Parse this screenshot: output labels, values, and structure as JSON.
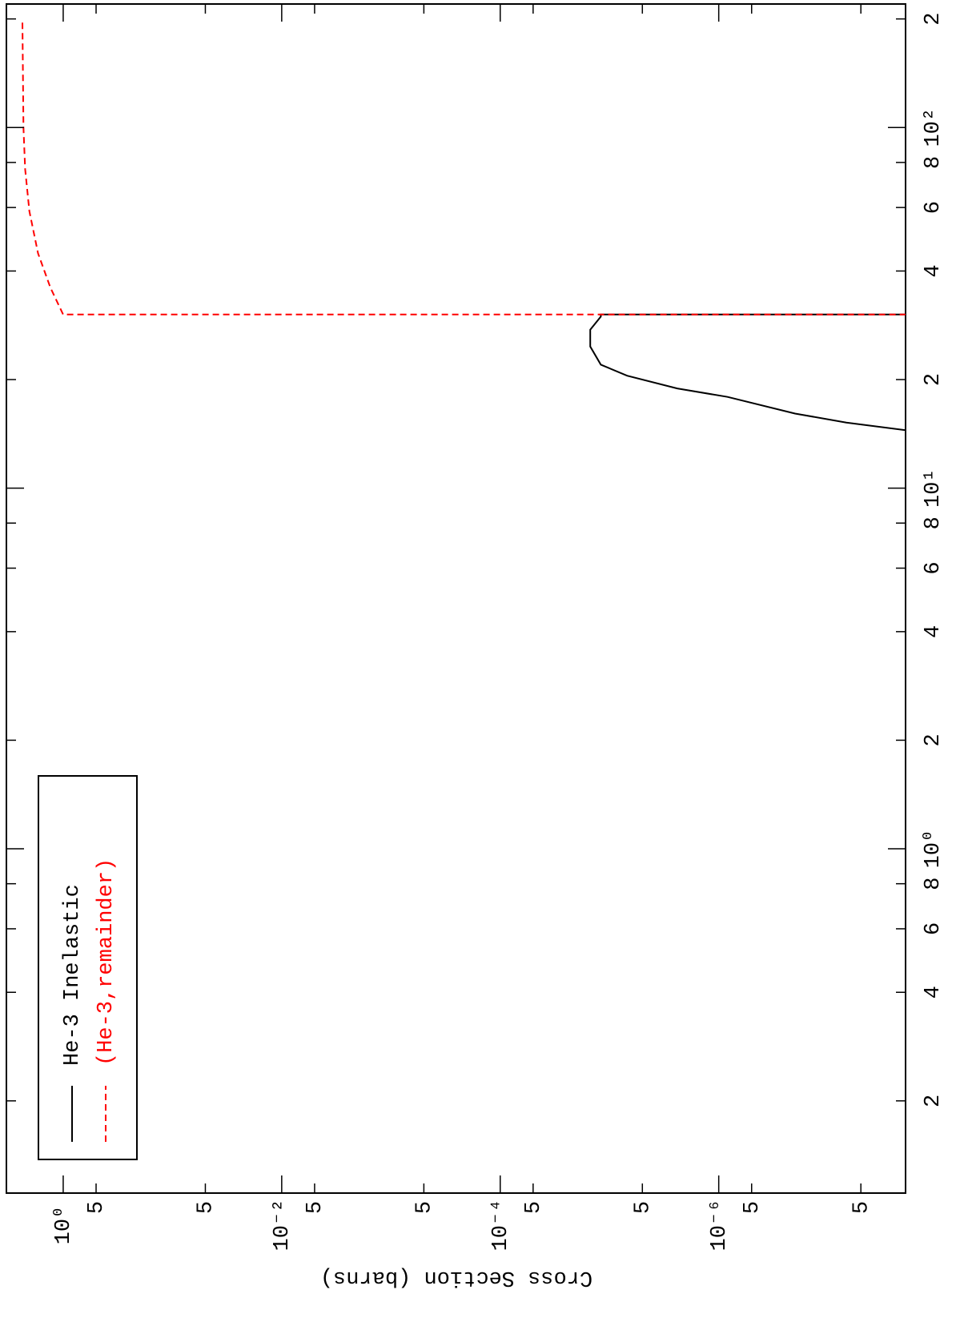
{
  "chart_data": {
    "type": "line",
    "ylabel": "Cross Section (barns)",
    "xscale": "log",
    "yscale": "log",
    "xlim": [
      0.111,
      220
    ],
    "ylim": [
      1.95e-08,
      3.31
    ],
    "xticks": [
      {
        "value": 0.2,
        "label": "2"
      },
      {
        "value": 0.4,
        "label": "4"
      },
      {
        "value": 0.6,
        "label": "6"
      },
      {
        "value": 0.8,
        "label": "8"
      },
      {
        "value": 1,
        "label": "10⁰"
      },
      {
        "value": 2,
        "label": "2"
      },
      {
        "value": 4,
        "label": "4"
      },
      {
        "value": 6,
        "label": "6"
      },
      {
        "value": 8,
        "label": "8"
      },
      {
        "value": 10,
        "label": "10¹"
      },
      {
        "value": 20,
        "label": "2"
      },
      {
        "value": 40,
        "label": "4"
      },
      {
        "value": 60,
        "label": "6"
      },
      {
        "value": 80,
        "label": "8"
      },
      {
        "value": 100,
        "label": "10²"
      },
      {
        "value": 200,
        "label": "2"
      }
    ],
    "yticks": [
      {
        "value": 1,
        "label": "10⁰"
      },
      {
        "value": 0.5,
        "label": "5"
      },
      {
        "value": 0.05,
        "label": "5"
      },
      {
        "value": 0.01,
        "label": "10⁻²"
      },
      {
        "value": 0.005,
        "label": "5"
      },
      {
        "value": 0.0005,
        "label": "5"
      },
      {
        "value": 0.0001,
        "label": "10⁻⁴"
      },
      {
        "value": 5e-05,
        "label": "5"
      },
      {
        "value": 5e-06,
        "label": "5"
      },
      {
        "value": 1e-06,
        "label": "10⁻⁶"
      },
      {
        "value": 5e-07,
        "label": "5"
      },
      {
        "value": 5e-08,
        "label": "5"
      }
    ],
    "legend": "upper left",
    "series": [
      {
        "name": "He-3 Inelastic",
        "color": "#000000",
        "dash": false,
        "x": [
          14.1,
          15.2,
          16.1,
          17.9,
          18.9,
          20.5,
          22,
          24.7,
          27.5,
          29.9,
          30.3,
          30.3
        ],
        "values": [
          1e-08,
          6.8e-08,
          2e-07,
          8.3e-07,
          2.4e-06,
          6.9e-06,
          1.2e-05,
          1.5e-05,
          1.5e-05,
          1.2e-05,
          1.2e-05,
          1e-08
        ]
      },
      {
        "name": "(He-3,remainder)",
        "color": "#ff0000",
        "dash": true,
        "x": [
          30.3,
          30.3,
          36,
          44.8,
          58.6,
          76.7,
          100,
          197
        ],
        "values": [
          1e-08,
          1.0,
          1.31,
          1.7,
          2.04,
          2.23,
          2.31,
          2.36
        ]
      }
    ]
  }
}
